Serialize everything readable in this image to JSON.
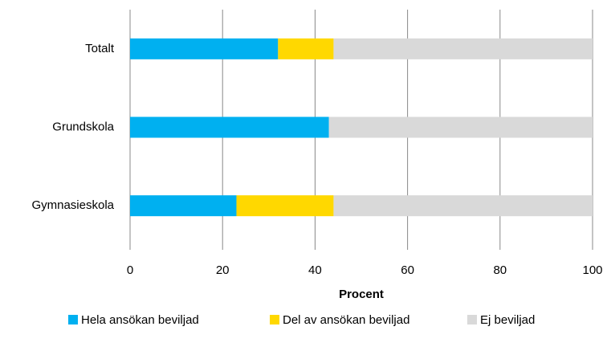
{
  "chart_data": {
    "type": "stacked_barh",
    "categories": [
      "Totalt",
      "Grundskola",
      "Gymnasieskola"
    ],
    "series": [
      {
        "name": "Hela ansökan beviljad",
        "color": "#00b0f0",
        "values": [
          32,
          43,
          23
        ]
      },
      {
        "name": "Del av ansökan beviljad",
        "color": "#ffd800",
        "values": [
          12,
          0,
          21
        ]
      },
      {
        "name": "Ej beviljad",
        "color": "#d9d9d9",
        "values": [
          56,
          57,
          56
        ]
      }
    ],
    "xlabel": "Procent",
    "xlim": [
      0,
      100
    ],
    "xticks": [
      0,
      20,
      40,
      60,
      80,
      100
    ],
    "grid": true,
    "legend": "bottom"
  }
}
